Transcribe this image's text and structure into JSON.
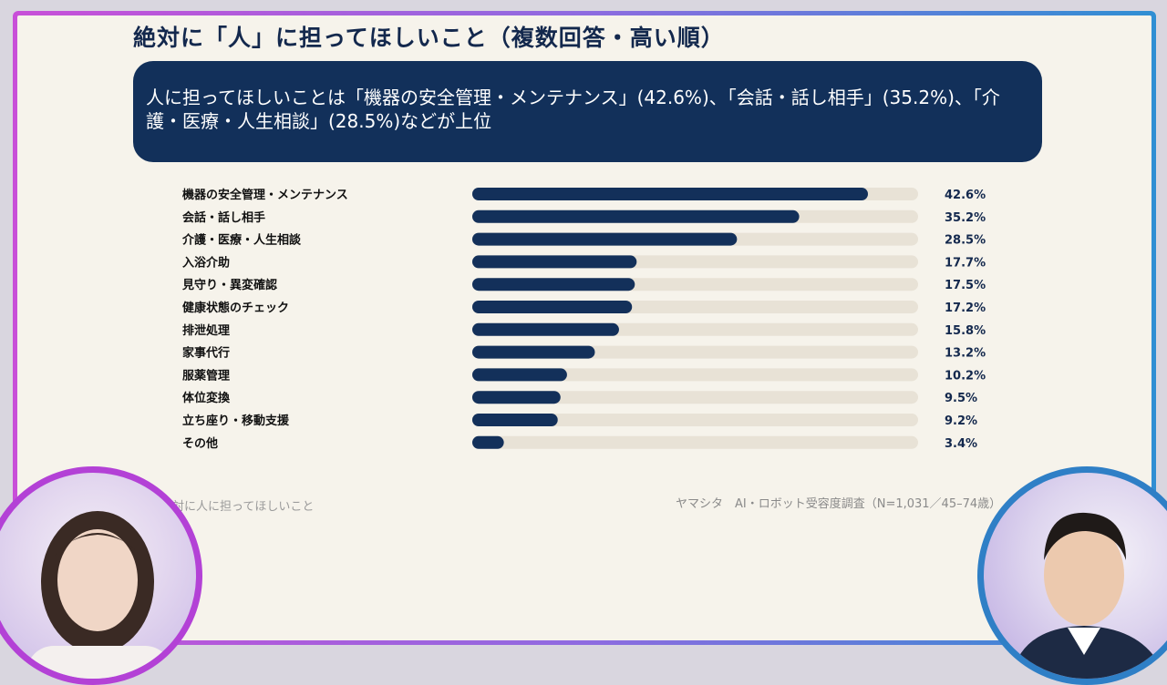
{
  "slide": {
    "title": "絶対に「人」に担ってほしいこと（複数回答・高い順）",
    "summary": "人に担ってほしいことは「機器の安全管理・メンテナンス」(42.6%)、「会話・話し相手」(35.2%)、「介護・医療・人生相談」(28.5%)などが上位",
    "chart_caption": "絶対に人に担ってほしいこと",
    "source": "ヤマシタ　AI・ロボット受容度調査（N=1,031／45–74歳）"
  },
  "colors": {
    "bar": "#13305a",
    "track": "#e8e2d6",
    "title": "#13284d",
    "summary_bg": "#12305a",
    "frame_left": "#c84fd8",
    "frame_right": "#2f8fd3"
  },
  "chart_data": {
    "type": "bar",
    "orientation": "horizontal",
    "unit": "%",
    "xlim": [
      0,
      48
    ],
    "categories": [
      "機器の安全管理・メンテナンス",
      "会話・話し相手",
      "介護・医療・人生相談",
      "入浴介助",
      "見守り・異変確認",
      "健康状態のチェック",
      "排泄処理",
      "家事代行",
      "服薬管理",
      "体位変換",
      "立ち座り・移動支援",
      "その他"
    ],
    "values": [
      42.6,
      35.2,
      28.5,
      17.7,
      17.5,
      17.2,
      15.8,
      13.2,
      10.2,
      9.5,
      9.2,
      3.4
    ],
    "value_labels": [
      "42.6%",
      "35.2%",
      "28.5%",
      "17.7%",
      "17.5%",
      "17.2%",
      "15.8%",
      "13.2%",
      "10.2%",
      "9.5%",
      "9.2%",
      "3.4%"
    ]
  }
}
